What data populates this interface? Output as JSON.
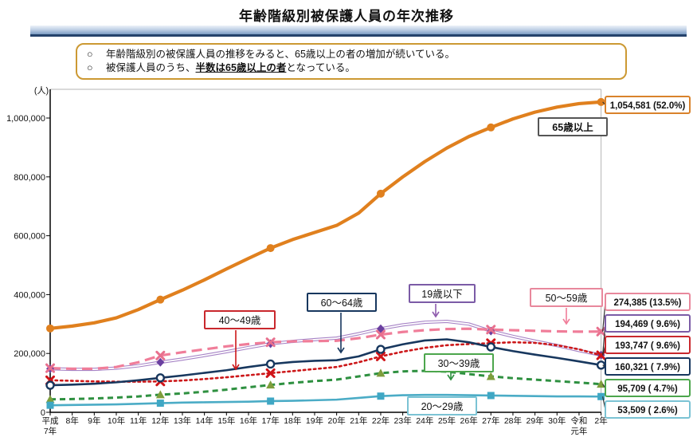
{
  "header": {
    "title": "年齢階級別被保護人員の年次推移"
  },
  "callout": {
    "bullet": "○",
    "line1": "年齢階級別の被保護人員の推移をみると、65歳以上の者の増加が続いている。",
    "line2_pre": "被保護人員のうち、",
    "line2_em": "半数は65歳以上の者",
    "line2_post": "となっている。"
  },
  "chart_data": {
    "type": "line",
    "title": "年齢階級別被保護人員の年次推移",
    "unit_label": "(人)",
    "ylim": [
      0,
      1100000
    ],
    "grid": false,
    "y_ticks": [
      {
        "value": 0,
        "label": "0"
      },
      {
        "value": 200000,
        "label": "200,000"
      },
      {
        "value": 400000,
        "label": "400,000"
      },
      {
        "value": 600000,
        "label": "600,000"
      },
      {
        "value": 800000,
        "label": "800,000"
      },
      {
        "value": 1000000,
        "label": "1,000,000"
      }
    ],
    "categories": [
      "平成7年",
      "8年",
      "9年",
      "10年",
      "11年",
      "12年",
      "13年",
      "14年",
      "15年",
      "16年",
      "17年",
      "18年",
      "19年",
      "20年",
      "21年",
      "22年",
      "23年",
      "24年",
      "25年",
      "26年",
      "27年",
      "28年",
      "29年",
      "30年",
      "令和元年",
      "2年"
    ],
    "marker_every": 5,
    "series": [
      {
        "id": "age19under",
        "name": "19歳以下",
        "color": "#8E5BAD",
        "marker_color": "#6A3FA0",
        "line_style": "double",
        "marker": "diamond",
        "end_label": "194,469 ( 9.6%)",
        "box_border": "#7B5BA6",
        "values": [
          148000,
          146000,
          146000,
          150000,
          158000,
          170000,
          181000,
          193000,
          206000,
          220000,
          233000,
          241000,
          247000,
          252000,
          267000,
          284000,
          297000,
          306000,
          309000,
          300000,
          276000,
          258000,
          242000,
          227000,
          210000,
          194469
        ]
      },
      {
        "id": "age50_59",
        "name": "50～59歳",
        "color": "#F07D99",
        "marker_color": "#E8708E",
        "line_style": "longdash",
        "marker": "x",
        "end_label": "274,385 (13.5%)",
        "box_border": "#E8889C",
        "values": [
          150000,
          148000,
          148000,
          154000,
          170000,
          193000,
          204000,
          214000,
          224000,
          232000,
          238000,
          241000,
          242000,
          243000,
          252000,
          264000,
          273000,
          279000,
          283000,
          284000,
          281000,
          279000,
          277000,
          275000,
          274000,
          274385
        ]
      },
      {
        "id": "age40_49",
        "name": "40～49歳",
        "color": "#CC1719",
        "marker_color": "#D01317",
        "line_style": "dotted",
        "marker": "x",
        "end_label": "193,747 ( 9.6%)",
        "box_border": "#C9282D",
        "values": [
          109000,
          107000,
          105000,
          104000,
          104000,
          105000,
          108000,
          113000,
          119000,
          126000,
          133000,
          140000,
          147000,
          154000,
          170000,
          190000,
          206000,
          219000,
          228000,
          232000,
          235000,
          238000,
          236000,
          228000,
          214000,
          193747
        ]
      },
      {
        "id": "age60_64",
        "name": "60～64歳",
        "color": "#17375E",
        "marker_color": "#17375E",
        "line_style": "solid",
        "marker": "opencircle",
        "end_label": "160,321 ( 7.9%)",
        "box_border": "#17375E",
        "values": [
          92000,
          94000,
          97000,
          102000,
          109000,
          117000,
          125000,
          134000,
          143000,
          154000,
          164000,
          171000,
          175000,
          177000,
          190000,
          214000,
          231000,
          244000,
          248000,
          238000,
          222000,
          208000,
          196000,
          185000,
          173000,
          160321
        ]
      },
      {
        "id": "age30_39",
        "name": "30～39歳",
        "color": "#2E9040",
        "marker_color": "#7E9E3C",
        "line_style": "dashed",
        "marker": "triangle",
        "end_label": "95,709 ( 4.7%)",
        "box_border": "#4CA64C",
        "values": [
          44000,
          45000,
          47000,
          50000,
          54000,
          60000,
          64000,
          70000,
          77000,
          85000,
          93000,
          100000,
          106000,
          111000,
          122000,
          133000,
          139000,
          141000,
          138000,
          130000,
          122000,
          116000,
          111000,
          106000,
          101000,
          95709
        ]
      },
      {
        "id": "age20_29",
        "name": "20～29歳",
        "color": "#4BACC6",
        "marker_color": "#3FA7C4",
        "line_style": "solid",
        "marker": "square",
        "end_label": "53,509 ( 2.6%)",
        "box_border": "#7BC3D4",
        "values": [
          24000,
          25000,
          26000,
          27000,
          29000,
          31000,
          33000,
          34000,
          35000,
          36000,
          38000,
          39000,
          41000,
          43000,
          49000,
          55000,
          58000,
          59000,
          59000,
          58000,
          57000,
          56000,
          55000,
          54000,
          54000,
          53509
        ]
      },
      {
        "id": "age65plus",
        "name": "65歳以上",
        "color": "#E0801E",
        "marker_color": "#E0801E",
        "line_style": "solid-thick",
        "marker": "circle",
        "end_label": "1,054,581 (52.0%)",
        "box_border": "#D9822B",
        "values": [
          285000,
          293000,
          304000,
          321000,
          349000,
          383000,
          415000,
          450000,
          487000,
          523000,
          558000,
          587000,
          611000,
          635000,
          677000,
          743000,
          800000,
          852000,
          898000,
          937000,
          968000,
          997000,
          1020000,
          1037000,
          1049000,
          1054581
        ]
      }
    ],
    "legend_position": "on-chart-callouts"
  }
}
